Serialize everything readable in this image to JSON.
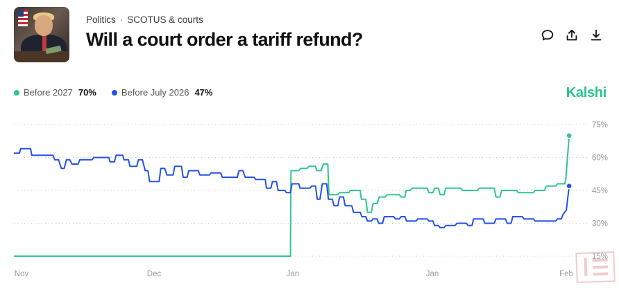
{
  "header": {
    "category": "Politics",
    "separator": "·",
    "subcategory": "SCOTUS & courts",
    "title": "Will a court order a tariff refund?"
  },
  "actions": {
    "comment_icon": "comment-icon",
    "share_icon": "share-icon",
    "download_icon": "download-icon"
  },
  "legend": [
    {
      "name": "Before 2027",
      "value": "70%",
      "color": "#2fc58f"
    },
    {
      "name": "Before July 2026",
      "value": "47%",
      "color": "#2451e6"
    }
  ],
  "brand": "Kalshi",
  "chart_data": {
    "type": "line",
    "x_ticks": [
      "Nov",
      "Dec",
      "Jan",
      "Jan",
      "Feb"
    ],
    "y_ticks": [
      "75%",
      "60%",
      "45%",
      "30%",
      "15%"
    ],
    "ylim": [
      15,
      75
    ],
    "grid": true,
    "legend_position": "top-left",
    "series": [
      {
        "name": "Before 2027",
        "color": "#2fc58f",
        "points": [
          [
            0,
            15
          ],
          [
            4,
            15
          ],
          [
            8,
            15
          ],
          [
            12,
            15
          ],
          [
            16,
            15
          ],
          [
            20,
            15
          ],
          [
            24,
            15
          ],
          [
            28,
            15
          ],
          [
            32,
            15
          ],
          [
            36,
            15
          ],
          [
            40,
            15
          ],
          [
            44,
            15
          ],
          [
            48,
            15
          ],
          [
            49.5,
            15
          ],
          [
            49.6,
            54
          ],
          [
            51,
            54
          ],
          [
            51.3,
            55
          ],
          [
            52.5,
            55
          ],
          [
            52.8,
            56
          ],
          [
            54,
            56
          ],
          [
            54.2,
            54
          ],
          [
            55,
            54
          ],
          [
            55.4,
            57
          ],
          [
            56.2,
            57
          ],
          [
            56.4,
            43
          ],
          [
            58,
            43
          ],
          [
            58.3,
            44
          ],
          [
            60,
            44
          ],
          [
            60.2,
            45
          ],
          [
            62,
            45
          ],
          [
            62.2,
            41
          ],
          [
            63,
            41
          ],
          [
            63.3,
            35
          ],
          [
            64,
            35
          ],
          [
            64.3,
            39
          ],
          [
            65,
            39
          ],
          [
            65.4,
            42
          ],
          [
            66.5,
            42
          ],
          [
            66.8,
            43
          ],
          [
            69,
            43
          ],
          [
            69.3,
            42
          ],
          [
            70,
            42
          ],
          [
            70.2,
            45
          ],
          [
            71,
            45
          ],
          [
            71.3,
            46
          ],
          [
            74,
            46
          ],
          [
            74.3,
            44
          ],
          [
            75,
            44
          ],
          [
            75.3,
            46
          ],
          [
            76,
            46
          ],
          [
            76.3,
            43
          ],
          [
            77,
            43
          ],
          [
            77.3,
            46
          ],
          [
            80,
            46
          ],
          [
            80.3,
            45
          ],
          [
            83,
            45
          ],
          [
            83.3,
            46
          ],
          [
            86,
            46
          ],
          [
            86.3,
            42
          ],
          [
            87,
            42
          ],
          [
            87.3,
            45
          ],
          [
            90,
            45
          ],
          [
            90.3,
            44
          ],
          [
            93,
            44
          ],
          [
            93.3,
            45
          ],
          [
            95,
            45
          ],
          [
            95.3,
            47
          ],
          [
            97,
            47
          ],
          [
            97.3,
            48
          ],
          [
            98.6,
            48
          ],
          [
            98.8,
            50
          ],
          [
            99.4,
            70
          ]
        ]
      },
      {
        "name": "Before July 2026",
        "color": "#2451e6",
        "points": [
          [
            0,
            62
          ],
          [
            1,
            62
          ],
          [
            1.2,
            64
          ],
          [
            3,
            64
          ],
          [
            3.2,
            61
          ],
          [
            7,
            61
          ],
          [
            7.3,
            59
          ],
          [
            8,
            59
          ],
          [
            8.5,
            55
          ],
          [
            9,
            55
          ],
          [
            9.4,
            59
          ],
          [
            10,
            59
          ],
          [
            10.4,
            57
          ],
          [
            11.5,
            57
          ],
          [
            11.8,
            59
          ],
          [
            14,
            59
          ],
          [
            14.3,
            60
          ],
          [
            17,
            60
          ],
          [
            17.2,
            58
          ],
          [
            18,
            58
          ],
          [
            18.3,
            61
          ],
          [
            19.5,
            61
          ],
          [
            19.7,
            59
          ],
          [
            20.5,
            59
          ],
          [
            20.8,
            56
          ],
          [
            22,
            56
          ],
          [
            22.3,
            59
          ],
          [
            23,
            59
          ],
          [
            23.5,
            54
          ],
          [
            24,
            54
          ],
          [
            24.3,
            49
          ],
          [
            26,
            49
          ],
          [
            26.3,
            55
          ],
          [
            27,
            55
          ],
          [
            27.4,
            52
          ],
          [
            28.5,
            52
          ],
          [
            28.8,
            56
          ],
          [
            30,
            56
          ],
          [
            30.3,
            51
          ],
          [
            31,
            51
          ],
          [
            31.3,
            54
          ],
          [
            33,
            54
          ],
          [
            33.3,
            52
          ],
          [
            35,
            52
          ],
          [
            35.3,
            53
          ],
          [
            37,
            53
          ],
          [
            37.3,
            51
          ],
          [
            40,
            51
          ],
          [
            40.3,
            54
          ],
          [
            41,
            54
          ],
          [
            41.4,
            51
          ],
          [
            43,
            51
          ],
          [
            43.3,
            50
          ],
          [
            45,
            50
          ],
          [
            45.2,
            46
          ],
          [
            46,
            46
          ],
          [
            46.3,
            49
          ],
          [
            47,
            49
          ],
          [
            47.3,
            45
          ],
          [
            48.5,
            45
          ],
          [
            48.8,
            44
          ],
          [
            49.5,
            44
          ],
          [
            49.8,
            48
          ],
          [
            51,
            48
          ],
          [
            51.2,
            46
          ],
          [
            53,
            46
          ],
          [
            53.3,
            47
          ],
          [
            54,
            47
          ],
          [
            54.3,
            41
          ],
          [
            54.8,
            41
          ],
          [
            55.2,
            48
          ],
          [
            56,
            48
          ],
          [
            56.3,
            41
          ],
          [
            57,
            41
          ],
          [
            57.3,
            38
          ],
          [
            58,
            38
          ],
          [
            58.3,
            42
          ],
          [
            59,
            42
          ],
          [
            59.3,
            38
          ],
          [
            60.5,
            38
          ],
          [
            60.8,
            35
          ],
          [
            62,
            35
          ],
          [
            62.3,
            33
          ],
          [
            63,
            33
          ],
          [
            63.3,
            31
          ],
          [
            64,
            31
          ],
          [
            64.3,
            32
          ],
          [
            65,
            32
          ],
          [
            65.3,
            30
          ],
          [
            66,
            30
          ],
          [
            66.3,
            33
          ],
          [
            68,
            33
          ],
          [
            68.3,
            32
          ],
          [
            69,
            32
          ],
          [
            69.3,
            33
          ],
          [
            70,
            33
          ],
          [
            70.3,
            31
          ],
          [
            72,
            31
          ],
          [
            72.3,
            32
          ],
          [
            74,
            32
          ],
          [
            74.3,
            31
          ],
          [
            75,
            31
          ],
          [
            75.3,
            29
          ],
          [
            76,
            29
          ],
          [
            76.3,
            28
          ],
          [
            77,
            28
          ],
          [
            77.3,
            29
          ],
          [
            79,
            29
          ],
          [
            79.3,
            30
          ],
          [
            81,
            30
          ],
          [
            81.3,
            29
          ],
          [
            82,
            29
          ],
          [
            82.3,
            32
          ],
          [
            84,
            32
          ],
          [
            84.3,
            30
          ],
          [
            86,
            30
          ],
          [
            86.3,
            32
          ],
          [
            88,
            32
          ],
          [
            88.3,
            30
          ],
          [
            89,
            30
          ],
          [
            89.3,
            33
          ],
          [
            91,
            33
          ],
          [
            91.3,
            32
          ],
          [
            93,
            32
          ],
          [
            93.3,
            31
          ],
          [
            97,
            31
          ],
          [
            97.3,
            32
          ],
          [
            98,
            32
          ],
          [
            98.3,
            34
          ],
          [
            98.9,
            36
          ],
          [
            99.4,
            47
          ]
        ]
      }
    ]
  }
}
